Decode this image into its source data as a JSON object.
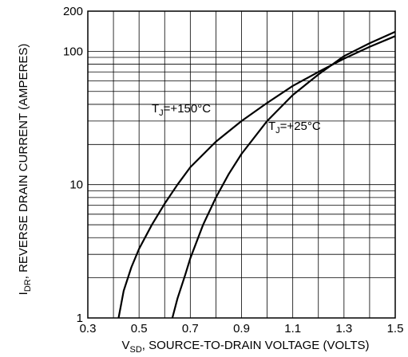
{
  "chart_data": {
    "type": "line",
    "title": "",
    "xlabel": {
      "lead": "V",
      "sub": "SD",
      "rest": ", SOURCE-TO-DRAIN VOLTAGE (VOLTS)"
    },
    "ylabel": {
      "lead": "I",
      "sub": "DR",
      "rest": ", REVERSE DRAIN CURRENT (AMPERES)"
    },
    "xlim": [
      0.3,
      1.5
    ],
    "ylim": [
      1,
      200
    ],
    "yscale": "log",
    "grid": true,
    "x_ticks": [
      "0.3",
      "0.5",
      "0.7",
      "0.9",
      "1.1",
      "1.3",
      "1.5"
    ],
    "y_ticks": [
      "1",
      "10",
      "100",
      "200"
    ],
    "series": [
      {
        "name": "",
        "label": {
          "lead": "T",
          "sub": "J",
          "rest": "=+150°C"
        },
        "x": [
          0.42,
          0.44,
          0.47,
          0.5,
          0.55,
          0.6,
          0.65,
          0.7,
          0.8,
          0.9,
          1.0,
          1.1,
          1.2,
          1.3,
          1.4,
          1.5
        ],
        "y": [
          1.0,
          1.6,
          2.4,
          3.3,
          5.0,
          7.2,
          10.0,
          13.5,
          21,
          30,
          41,
          55,
          70,
          88,
          108,
          130
        ]
      },
      {
        "name": "",
        "label": {
          "lead": "T",
          "sub": "J",
          "rest": "=+25°C"
        },
        "x": [
          0.63,
          0.65,
          0.68,
          0.7,
          0.75,
          0.8,
          0.85,
          0.9,
          1.0,
          1.1,
          1.2,
          1.3,
          1.4,
          1.5
        ],
        "y": [
          1.0,
          1.4,
          2.1,
          2.8,
          5.0,
          8.0,
          12.0,
          17.0,
          30,
          47,
          67,
          92,
          115,
          140
        ]
      }
    ]
  }
}
